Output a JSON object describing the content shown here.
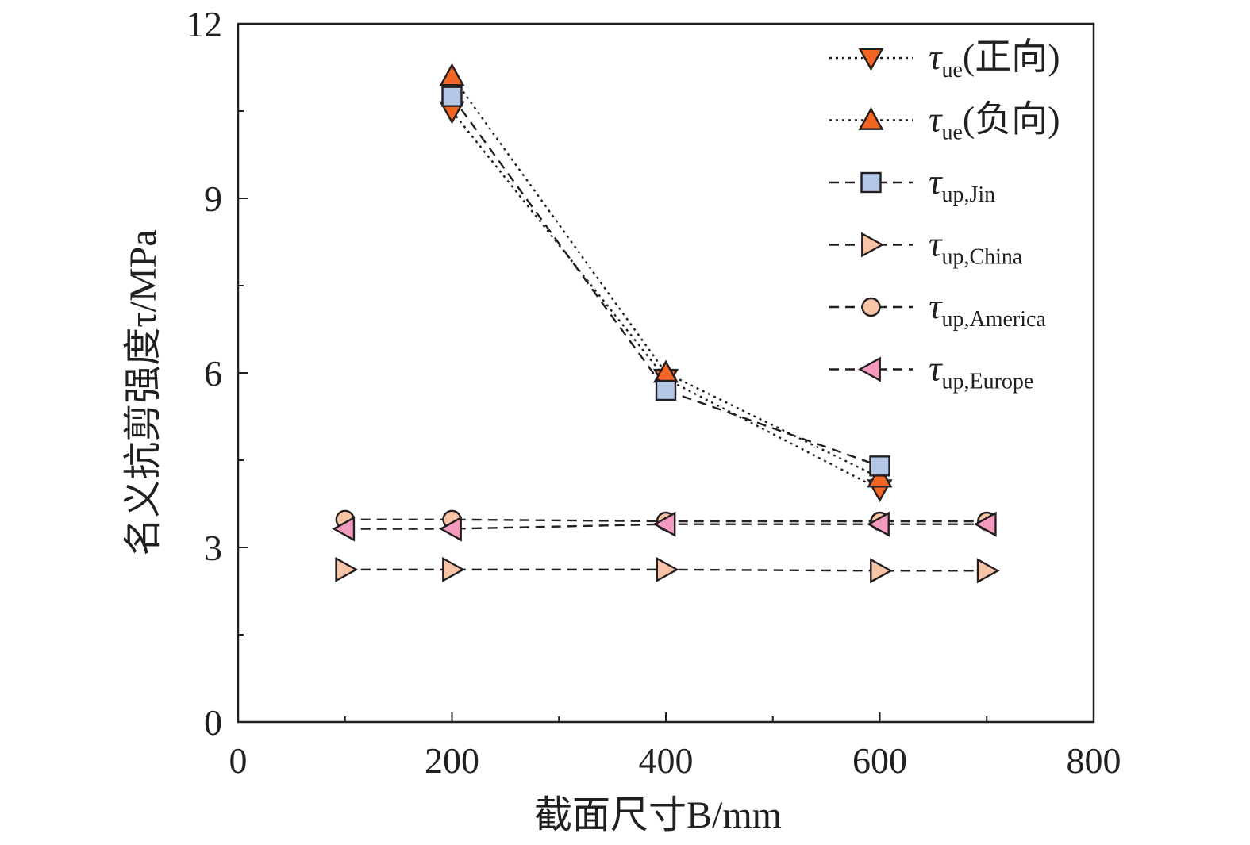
{
  "chart_data": {
    "type": "line",
    "xlabel": "截面尺寸B/mm",
    "ylabel": "名义抗剪强度τ/MPa",
    "xlim": [
      0,
      800
    ],
    "ylim": [
      0,
      12
    ],
    "xticks": [
      0,
      200,
      400,
      600,
      800
    ],
    "yticks": [
      0,
      3,
      6,
      9,
      12
    ],
    "x_minor_step": 100,
    "y_minor_step": 1.5,
    "legend_position": "top-right",
    "series": [
      {
        "name": "τue(正向)",
        "symbol": "τ",
        "subscript": "ue",
        "suffix": "(正向)",
        "marker": "triangle-down",
        "color": "#f26522",
        "line": "dotted",
        "x": [
          200,
          400,
          600
        ],
        "y": [
          10.5,
          5.9,
          4.0
        ]
      },
      {
        "name": "τue(负向)",
        "symbol": "τ",
        "subscript": "ue",
        "suffix": "(负向)",
        "marker": "triangle-up",
        "color": "#f26522",
        "line": "dotted",
        "x": [
          200,
          400,
          600
        ],
        "y": [
          11.1,
          6.0,
          4.2
        ]
      },
      {
        "name": "τup,Jin",
        "symbol": "τ",
        "subscript": "up,Jin",
        "suffix": "",
        "marker": "square",
        "color": "#b4c7e7",
        "line": "dashed",
        "x": [
          200,
          400,
          600
        ],
        "y": [
          10.75,
          5.7,
          4.4
        ]
      },
      {
        "name": "τup,China",
        "symbol": "τ",
        "subscript": "up,China",
        "suffix": "",
        "marker": "triangle-right",
        "color": "#f8c4a6",
        "line": "dashed",
        "x": [
          100,
          200,
          400,
          600,
          700
        ],
        "y": [
          2.62,
          2.62,
          2.62,
          2.6,
          2.6
        ]
      },
      {
        "name": "τup,America",
        "symbol": "τ",
        "subscript": "up,America",
        "suffix": "",
        "marker": "circle",
        "color": "#f8c4a6",
        "line": "dashed",
        "x": [
          100,
          200,
          400,
          600,
          700
        ],
        "y": [
          3.48,
          3.48,
          3.45,
          3.45,
          3.45
        ]
      },
      {
        "name": "τup,Europe",
        "symbol": "τ",
        "subscript": "up,Europe",
        "suffix": "",
        "marker": "triangle-left",
        "color": "#f49ac1",
        "line": "dashed",
        "x": [
          100,
          200,
          400,
          600,
          700
        ],
        "y": [
          3.32,
          3.32,
          3.4,
          3.4,
          3.4
        ]
      }
    ]
  }
}
